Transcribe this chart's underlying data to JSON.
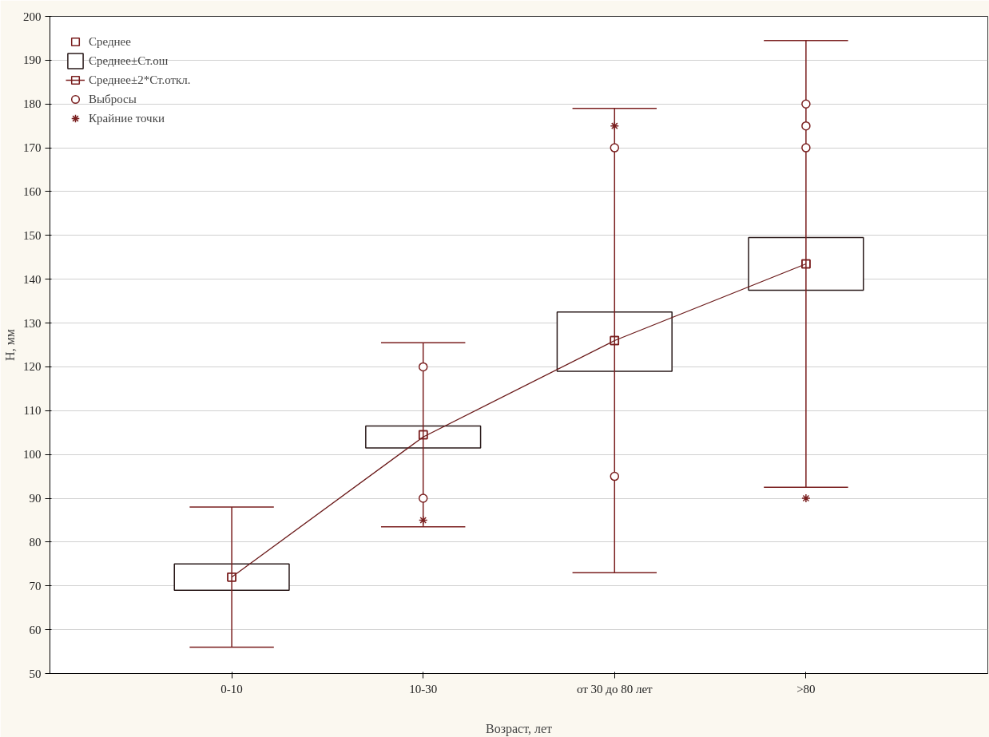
{
  "chart_data": {
    "type": "scatter",
    "xlabel": "Возраст, лет",
    "ylabel": "H, мм",
    "categories": [
      "0-10",
      "10-30",
      "от 30 до 80 лет",
      ">80"
    ],
    "ylim": [
      50,
      200
    ],
    "yticks": [
      50,
      60,
      70,
      80,
      90,
      100,
      110,
      120,
      130,
      140,
      150,
      160,
      170,
      180,
      190,
      200
    ],
    "grid": "y",
    "legend": "top left",
    "series": [
      {
        "name": "Среднее",
        "marker": "square",
        "color": "#7a1f1f",
        "values": [
          72,
          104.5,
          126,
          143.5
        ]
      },
      {
        "name": "Среднее±Ст.ош",
        "type": "bar",
        "color": "#2a1a1a",
        "base": [
          69,
          101.5,
          119,
          137.5
        ],
        "values": [
          6,
          5,
          13.5,
          12
        ]
      },
      {
        "name": "Среднее±2*Ст.откл.",
        "type": "scatter",
        "marker": "square",
        "color": "#7a1f1f",
        "values": [
          72,
          104.5,
          126,
          143.5
        ],
        "errors": [
          [
            56,
            88
          ],
          [
            83.5,
            125.5
          ],
          [
            73,
            179
          ],
          [
            92.5,
            194.5
          ]
        ]
      },
      {
        "name": "Выбросы",
        "marker": "circle",
        "color": "#7a1f1f",
        "x": [
          "10-30",
          "10-30",
          "от 30 до 80 лет",
          "от 30 до 80 лет",
          ">80",
          ">80",
          ">80"
        ],
        "values": [
          120,
          90,
          170,
          95,
          180,
          175,
          170
        ]
      },
      {
        "name": "Крайние точки",
        "marker": "cross",
        "color": "#7a1f1f",
        "x": [
          "10-30",
          "от 30 до 80 лет",
          ">80"
        ],
        "values": [
          85,
          175,
          90
        ]
      },
      {
        "type": "line",
        "color": "#6b1a1a",
        "line_style": "solid",
        "x": [
          "0-10",
          "10-30",
          "от 30 до 80 лет",
          ">80"
        ],
        "values": [
          72,
          104,
          126,
          143.5
        ]
      }
    ]
  }
}
